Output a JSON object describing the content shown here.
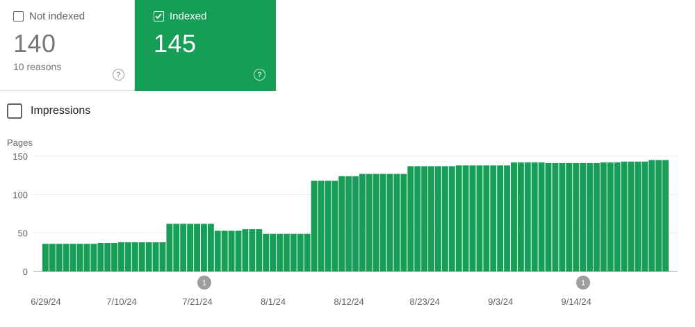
{
  "cards": {
    "not_indexed": {
      "label": "Not indexed",
      "value": "140",
      "sub": "10 reasons",
      "checked": false,
      "help_icon": "help-circle-icon"
    },
    "indexed": {
      "label": "Indexed",
      "value": "145",
      "checked": true,
      "help_icon": "help-circle-icon",
      "color": "#169e57"
    }
  },
  "impressions": {
    "label": "Impressions",
    "checked": false
  },
  "annotations": [
    {
      "label": "1",
      "date": "7/22/24"
    },
    {
      "label": "1",
      "date": "9/15/24"
    }
  ],
  "chart_data": {
    "type": "bar",
    "ylabel": "Pages",
    "ylim": [
      0,
      150
    ],
    "yticks": [
      "150",
      "100",
      "50",
      "0"
    ],
    "xticks": [
      "6/29/24",
      "7/10/24",
      "7/21/24",
      "8/1/24",
      "8/12/24",
      "8/23/24",
      "9/3/24",
      "9/14/24"
    ],
    "bar_color": "#169e57",
    "grid": true,
    "start_date": "6/29/24",
    "values": [
      36,
      36,
      36,
      36,
      36,
      36,
      36,
      36,
      37,
      37,
      37,
      38,
      38,
      38,
      38,
      38,
      38,
      38,
      62,
      62,
      62,
      62,
      62,
      62,
      62,
      53,
      53,
      53,
      53,
      55,
      55,
      55,
      49,
      49,
      49,
      49,
      49,
      49,
      49,
      118,
      118,
      118,
      118,
      124,
      124,
      124,
      127,
      127,
      127,
      127,
      127,
      127,
      127,
      137,
      137,
      137,
      137,
      137,
      137,
      137,
      138,
      138,
      138,
      138,
      138,
      138,
      138,
      138,
      142,
      142,
      142,
      142,
      142,
      141,
      141,
      141,
      141,
      141,
      141,
      141,
      141,
      142,
      142,
      142,
      143,
      143,
      143,
      143,
      145,
      145,
      145
    ]
  }
}
